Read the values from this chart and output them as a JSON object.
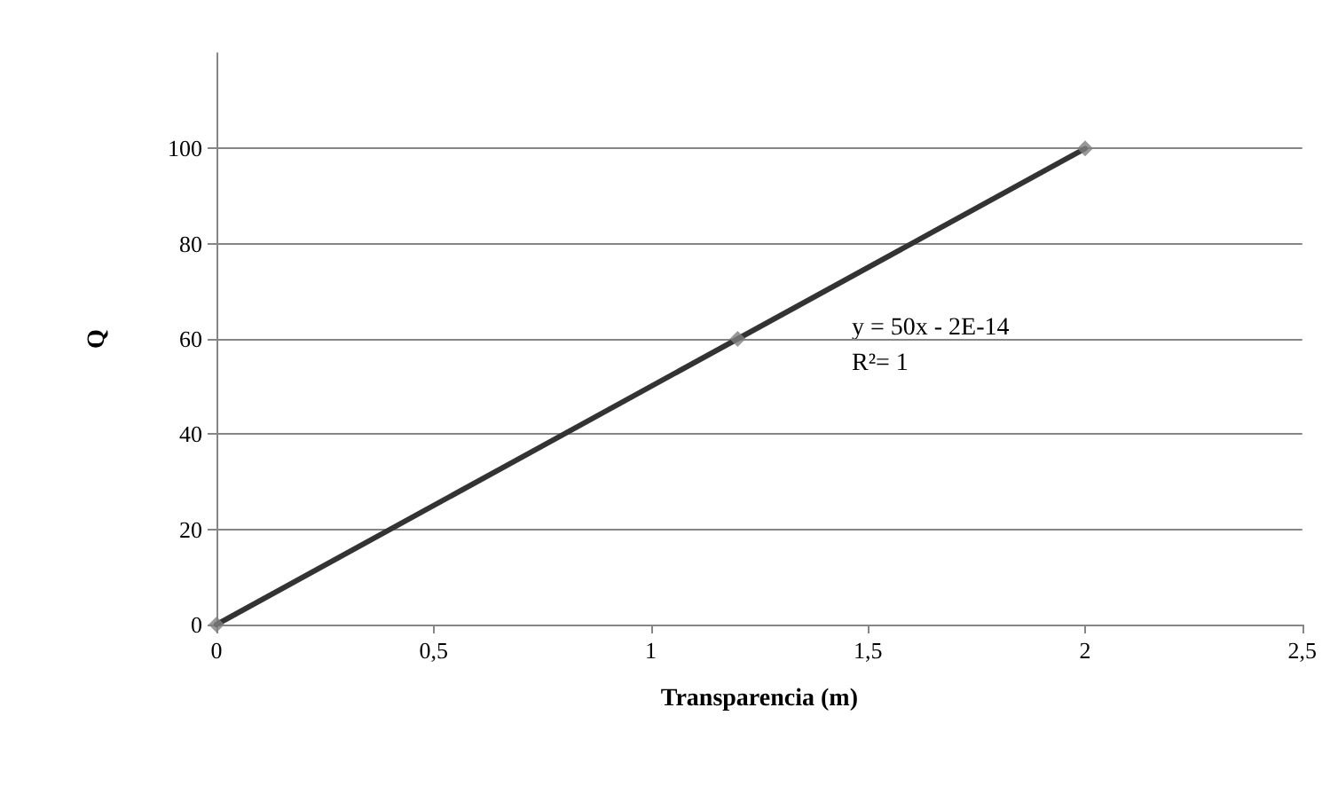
{
  "chart_data": {
    "type": "scatter",
    "xlabel": "Transparencia (m)",
    "ylabel": "Q",
    "xlim": [
      0,
      2.5
    ],
    "xticks": [
      0,
      {
        "value": 0.5,
        "label": "0,5"
      },
      1,
      {
        "value": 1.5,
        "label": "1,5"
      },
      2,
      {
        "value": 2.5,
        "label": "2,5"
      }
    ],
    "ylim": [
      0,
      120
    ],
    "yticks": [
      0,
      20,
      40,
      60,
      80,
      100
    ],
    "grid": "y",
    "series": [
      {
        "color": "#7f7f7f",
        "marker": "diamond",
        "x": [
          0,
          1.2,
          2
        ],
        "values": [
          0,
          60,
          100
        ]
      },
      {
        "type": "line",
        "color": "#333333",
        "marker": "none",
        "line_style": "solid",
        "x": [
          0,
          2
        ],
        "values": [
          0,
          100
        ]
      }
    ],
    "annotations": [
      "y = 50x - 2E-14",
      "R²= 1"
    ]
  }
}
